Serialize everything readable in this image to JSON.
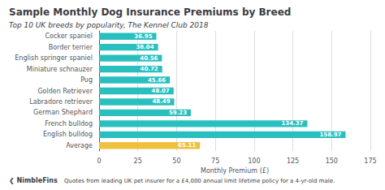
{
  "chart_data": {
    "type": "bar",
    "orientation": "horizontal",
    "title": "Sample Monthly Dog Insurance Premiums by Breed",
    "subtitle": "Top 10 UK breeds by popularity, The Kennel Club 2018",
    "xlabel": "Monthly Premium (£)",
    "annotations": [
      "❮ NimbleFins",
      "Quotes from leading UK pet insurer for a £4,000 annual limit lifetime policy for a 4-yr-old male."
    ],
    "categories": [
      "Average",
      "English bulldog",
      "French bulldog",
      "German Shephard",
      "Labradore retriever",
      "Golden Retriever",
      "Pug",
      "Miniature schnauzer",
      "English springer spaniel",
      "Border terrier",
      "Cocker spaniel"
    ],
    "values": [
      65.11,
      158.97,
      134.37,
      59.23,
      48.49,
      48.07,
      45.66,
      40.72,
      40.56,
      38.04,
      36.95
    ],
    "colors": [
      "#f0c040",
      "#2abfbf",
      "#2abfbf",
      "#2abfbf",
      "#2abfbf",
      "#2abfbf",
      "#2abfbf",
      "#2abfbf",
      "#2abfbf",
      "#2abfbf",
      "#2abfbf"
    ],
    "xlim": [
      0,
      175
    ],
    "xticks": [
      0,
      25,
      50,
      75,
      100,
      125,
      150,
      175
    ],
    "grid": true,
    "data_labels": true
  }
}
